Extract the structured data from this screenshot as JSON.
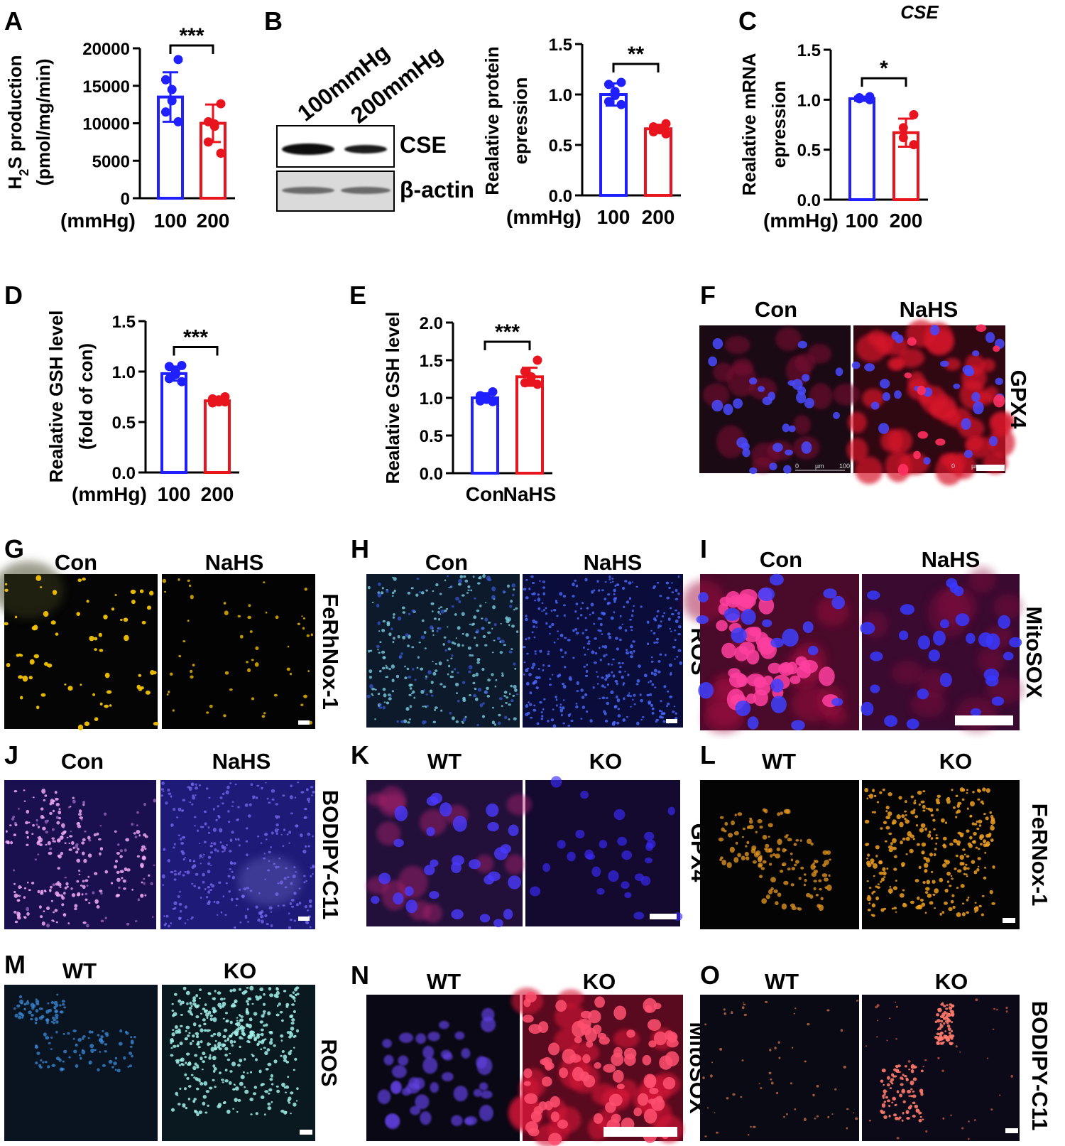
{
  "chart_data": [
    {
      "panel": "A",
      "type": "bar",
      "title": "",
      "ylabel": [
        "H2S production",
        "(pmol/mg/min)"
      ],
      "xunit": "(mmHg)",
      "categories": [
        "100",
        "200"
      ],
      "ylim": [
        0,
        20000
      ],
      "yticks": [
        0,
        5000,
        10000,
        15000,
        20000
      ],
      "values": [
        13500,
        10000
      ],
      "errors": [
        3300,
        2500
      ],
      "points": [
        [
          18500,
          15800,
          14500,
          13000,
          11500,
          10200
        ],
        [
          12600,
          10200,
          9900,
          9600,
          7500,
          6000
        ]
      ],
      "colors": [
        "#1f1fff",
        "#e8141e"
      ],
      "significance": "***"
    },
    {
      "panel": "B",
      "type": "bar",
      "title": "",
      "ylabel": [
        "Realative protein",
        "epression"
      ],
      "xunit": "(mmHg)",
      "categories": [
        "100",
        "200"
      ],
      "ylim": [
        0,
        1.5
      ],
      "yticks": [
        0.0,
        0.5,
        1.0,
        1.5
      ],
      "values": [
        1.0,
        0.66
      ],
      "errors": [
        0.11,
        0.04
      ],
      "points": [
        [
          1.12,
          1.1,
          1.03,
          0.99,
          0.93,
          0.9
        ],
        [
          0.71,
          0.68,
          0.66,
          0.65,
          0.63,
          0.61
        ]
      ],
      "colors": [
        "#1f1fff",
        "#e8141e"
      ],
      "significance": "**"
    },
    {
      "panel": "C",
      "type": "bar",
      "title": "CSE",
      "ylabel": [
        "Realative mRNA",
        "epression"
      ],
      "xunit": "(mmHg)",
      "categories": [
        "100",
        "200"
      ],
      "ylim": [
        0,
        1.5
      ],
      "yticks": [
        0.0,
        0.5,
        1.0,
        1.5
      ],
      "values": [
        1.01,
        0.67
      ],
      "errors": [
        0.02,
        0.14
      ],
      "points": [
        [
          1.03,
          1.02,
          1.01,
          1.0
        ],
        [
          0.85,
          0.72,
          0.62,
          0.55
        ]
      ],
      "colors": [
        "#1f1fff",
        "#e8141e"
      ],
      "significance": "*"
    },
    {
      "panel": "D",
      "type": "bar",
      "title": "",
      "ylabel": [
        "Realative GSH level",
        "(fold of con)"
      ],
      "xunit": "(mmHg)",
      "categories": [
        "100",
        "200"
      ],
      "ylim": [
        0,
        1.5
      ],
      "yticks": [
        0.0,
        0.5,
        1.0,
        1.5
      ],
      "values": [
        0.98,
        0.71
      ],
      "errors": [
        0.07,
        0.02
      ],
      "points": [
        [
          1.06,
          1.05,
          1.0,
          0.97,
          0.93,
          0.9
        ],
        [
          0.75,
          0.73,
          0.72,
          0.7,
          0.69,
          0.7
        ]
      ],
      "colors": [
        "#1f1fff",
        "#e8141e"
      ],
      "significance": "***"
    },
    {
      "panel": "E",
      "type": "bar",
      "title": "",
      "ylabel": [
        "Realative GSH level"
      ],
      "xunit": "",
      "categories": [
        "Con",
        "NaHS"
      ],
      "ylim": [
        0,
        2.0
      ],
      "yticks": [
        0.0,
        0.5,
        1.0,
        1.5,
        2.0
      ],
      "values": [
        1.0,
        1.28
      ],
      "errors": [
        0.06,
        0.12
      ],
      "points": [
        [
          1.08,
          1.03,
          1.0,
          0.98,
          0.96,
          0.95
        ],
        [
          1.5,
          1.35,
          1.28,
          1.22,
          1.2,
          1.18
        ]
      ],
      "colors": [
        "#1f1fff",
        "#e8141e"
      ],
      "significance": "***"
    }
  ],
  "blot": {
    "panel": "B",
    "lanes": [
      "100mmHg",
      "200mmHg"
    ],
    "bands": [
      "CSE",
      "β-actin"
    ]
  },
  "micrographs": [
    {
      "panel": "F",
      "cols": [
        "Con",
        "NaHS"
      ],
      "side": "GPX4"
    },
    {
      "panel": "G",
      "cols": [
        "Con",
        "NaHS"
      ],
      "side": "FeRhNox-1"
    },
    {
      "panel": "H",
      "cols": [
        "Con",
        "NaHS"
      ],
      "side": "ROS"
    },
    {
      "panel": "I",
      "cols": [
        "Con",
        "NaHS"
      ],
      "side": "MitoSOX"
    },
    {
      "panel": "J",
      "cols": [
        "Con",
        "NaHS"
      ],
      "side": "BODIPY-C11"
    },
    {
      "panel": "K",
      "cols": [
        "WT",
        "KO"
      ],
      "side": "GPX4"
    },
    {
      "panel": "L",
      "cols": [
        "WT",
        "KO"
      ],
      "side": "FeRNox-1"
    },
    {
      "panel": "M",
      "cols": [
        "WT",
        "KO"
      ],
      "side": "ROS"
    },
    {
      "panel": "N",
      "cols": [
        "WT",
        "KO"
      ],
      "side": "MitoSOX"
    },
    {
      "panel": "O",
      "cols": [
        "WT",
        "KO"
      ],
      "side": "BODIPY-C11"
    }
  ],
  "scalebar_text": [
    "0",
    "µm",
    "100"
  ],
  "palette": {
    "bar_blue": "#1f1fff",
    "bar_red": "#e8141e",
    "gpx4_red": "#c81428",
    "nuclei_blue": "#3030ff",
    "ferro_yellow": "#f2c200",
    "ros_cyan": "#7fe8e8",
    "mitosox_magenta": "#ff3a8a",
    "bodipy_pink": "#e89cf0",
    "ferro_orange": "#e89a20",
    "ros_teal": "#9ff0e8",
    "bodipy_salmon": "#ff7a6a"
  }
}
